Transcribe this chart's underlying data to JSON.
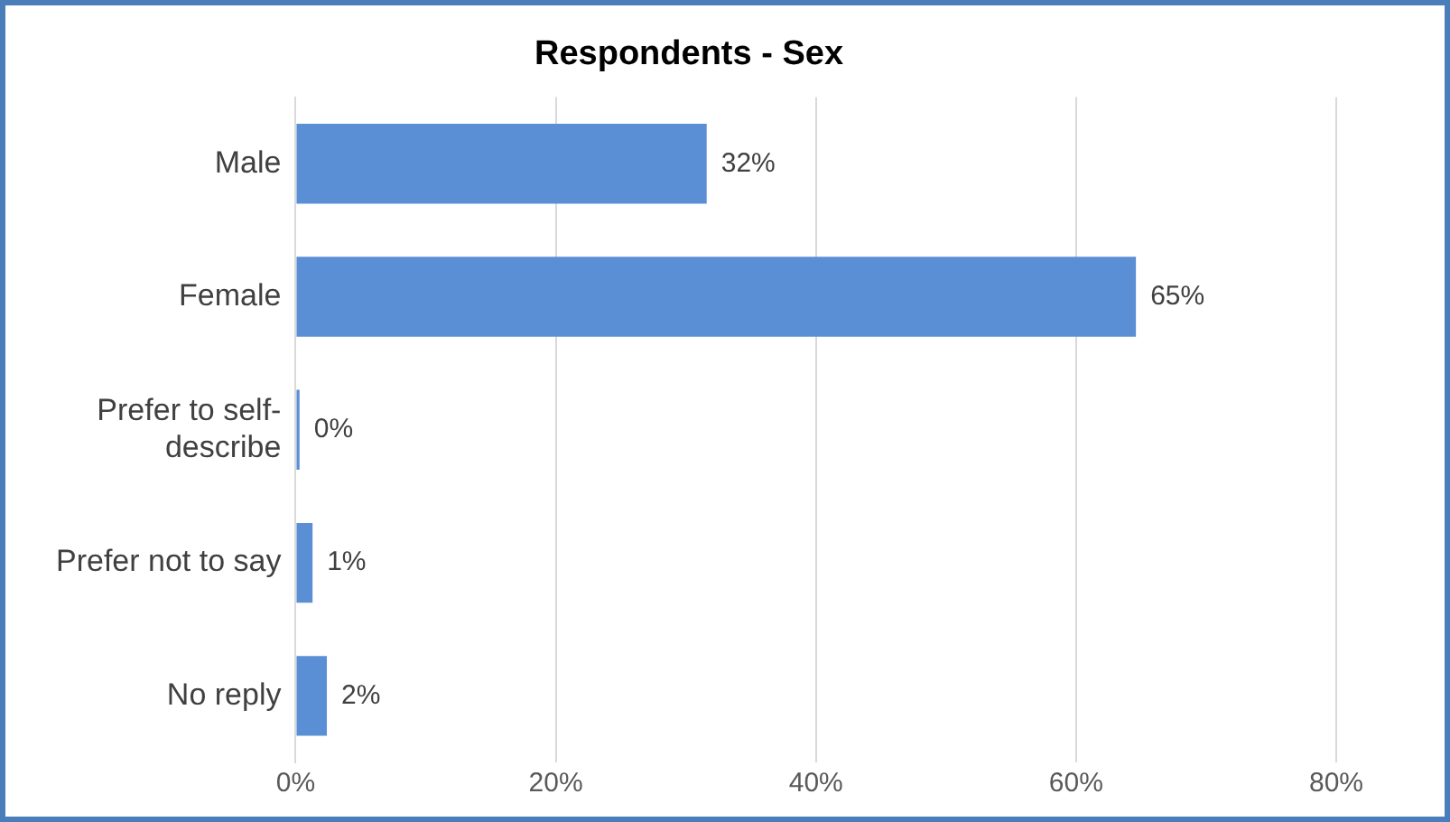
{
  "chart_data": {
    "type": "bar",
    "orientation": "horizontal",
    "title": "Respondents - Sex",
    "categories": [
      "Male",
      "Female",
      "Prefer to self-describe",
      "Prefer not to say",
      "No reply"
    ],
    "values": [
      31.6,
      64.6,
      0.3,
      1.3,
      2.4
    ],
    "value_labels": [
      "32%",
      "65%",
      "0%",
      "1%",
      "2%"
    ],
    "color": "#5b8fd5",
    "xlim": [
      0,
      80
    ],
    "xticks": [
      {
        "value": 0,
        "label": "0%"
      },
      {
        "value": 20,
        "label": "20%"
      },
      {
        "value": 40,
        "label": "40%"
      },
      {
        "value": 60,
        "label": "60%"
      },
      {
        "value": 80,
        "label": "80%"
      }
    ],
    "grid": "x",
    "legend": false
  }
}
